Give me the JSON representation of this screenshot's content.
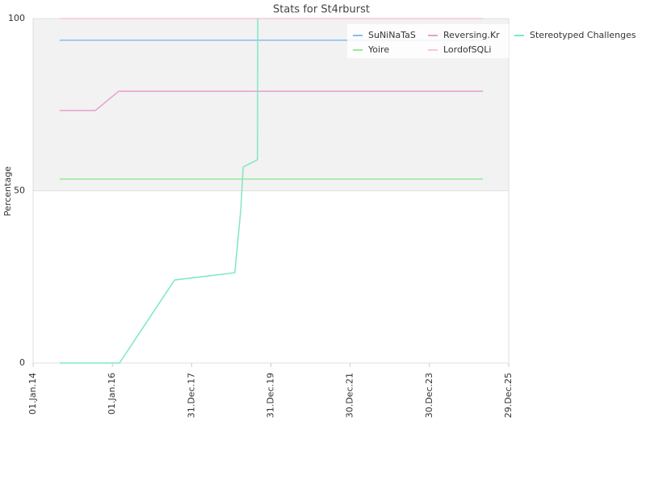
{
  "chart_data": {
    "type": "line",
    "title": "Stats for St4rburst",
    "y_label": "Percentage",
    "xlim": [
      2014,
      2026
    ],
    "xticks": [
      {
        "value": 2014,
        "label": "01.Jan.14"
      },
      {
        "value": 2016,
        "label": "01.Jan.16"
      },
      {
        "value": 2018,
        "label": "31.Dec.17"
      },
      {
        "value": 2020,
        "label": "31.Dec.19"
      },
      {
        "value": 2022,
        "label": "30.Dec.21"
      },
      {
        "value": 2024,
        "label": "30.Dec.23"
      },
      {
        "value": 2026,
        "label": "29.Dec.25"
      }
    ],
    "ylim": [
      0,
      100
    ],
    "yticks": [
      0,
      50,
      100
    ],
    "grid": true,
    "legend": "top-right",
    "series": [
      {
        "name": "SuNiNaTaS",
        "color": "#8ab8f0",
        "x": [
          2014.67,
          2025.35
        ],
        "values": [
          93.7,
          93.7
        ]
      },
      {
        "name": "Yoire",
        "color": "#98e898",
        "x": [
          2014.67,
          2025.35
        ],
        "values": [
          53.4,
          53.4
        ]
      },
      {
        "name": "Reversing.Kr",
        "color": "#e8a0cc",
        "x": [
          2014.67,
          2015.57,
          2016.16,
          2025.35
        ],
        "values": [
          73.3,
          73.3,
          78.9,
          78.9
        ]
      },
      {
        "name": "LordofSQLi",
        "color": "#f8c8d0",
        "x": [
          2014.67,
          2025.35
        ],
        "values": [
          100,
          100
        ]
      },
      {
        "name": "Stereotyped Challenges",
        "color": "#7ee8c0",
        "x": [
          2014.67,
          2016.18,
          2017.57,
          2019.09,
          2019.24,
          2019.3,
          2019.66,
          2019.67
        ],
        "values": [
          0,
          0,
          24.1,
          26.2,
          44.5,
          56.9,
          59.0,
          100
        ]
      }
    ]
  }
}
